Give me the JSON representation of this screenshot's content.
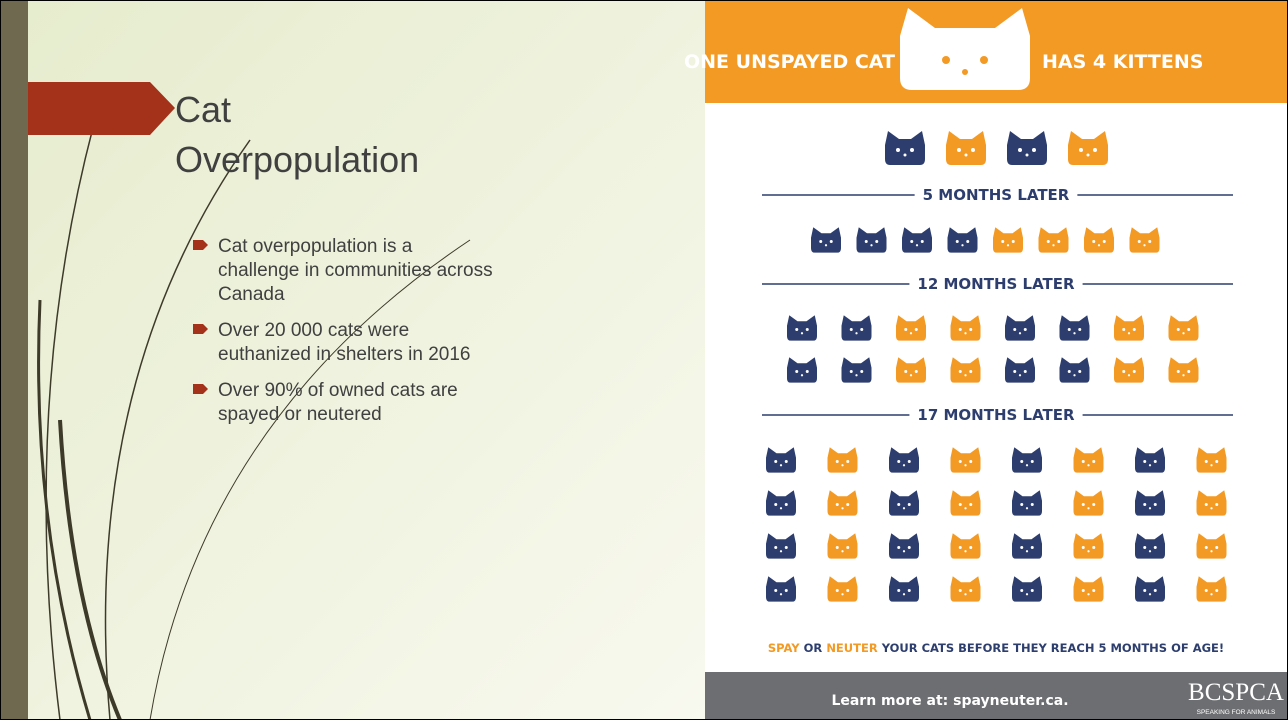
{
  "slide": {
    "title_lines": [
      "Cat",
      "Overpopulation"
    ],
    "bullets": [
      [
        "Cat overpopulation is a",
        "challenge in communities across",
        "Canada"
      ],
      [
        "Over 20 000 cats were",
        "euthanized in shelters in 2016"
      ],
      [
        "Over 90% of owned cats are",
        "spayed or neutered"
      ]
    ]
  },
  "infographic": {
    "header_left": "ONE UNSPAYED CAT",
    "header_right": "HAS 4 KITTENS",
    "sections": [
      "5 MONTHS LATER",
      "12 MONTHS LATER",
      "17 MONTHS LATER"
    ],
    "footer": {
      "spay": "SPAY",
      "or": "OR",
      "neuter": "NEUTER",
      "rest": "YOUR CATS BEFORE THEY REACH 5 MONTHS OF AGE!"
    },
    "learn_more": "Learn more at: spayneuter.ca.",
    "logo": "BCSPCA",
    "tagline": "SPEAKING FOR ANIMALS"
  }
}
